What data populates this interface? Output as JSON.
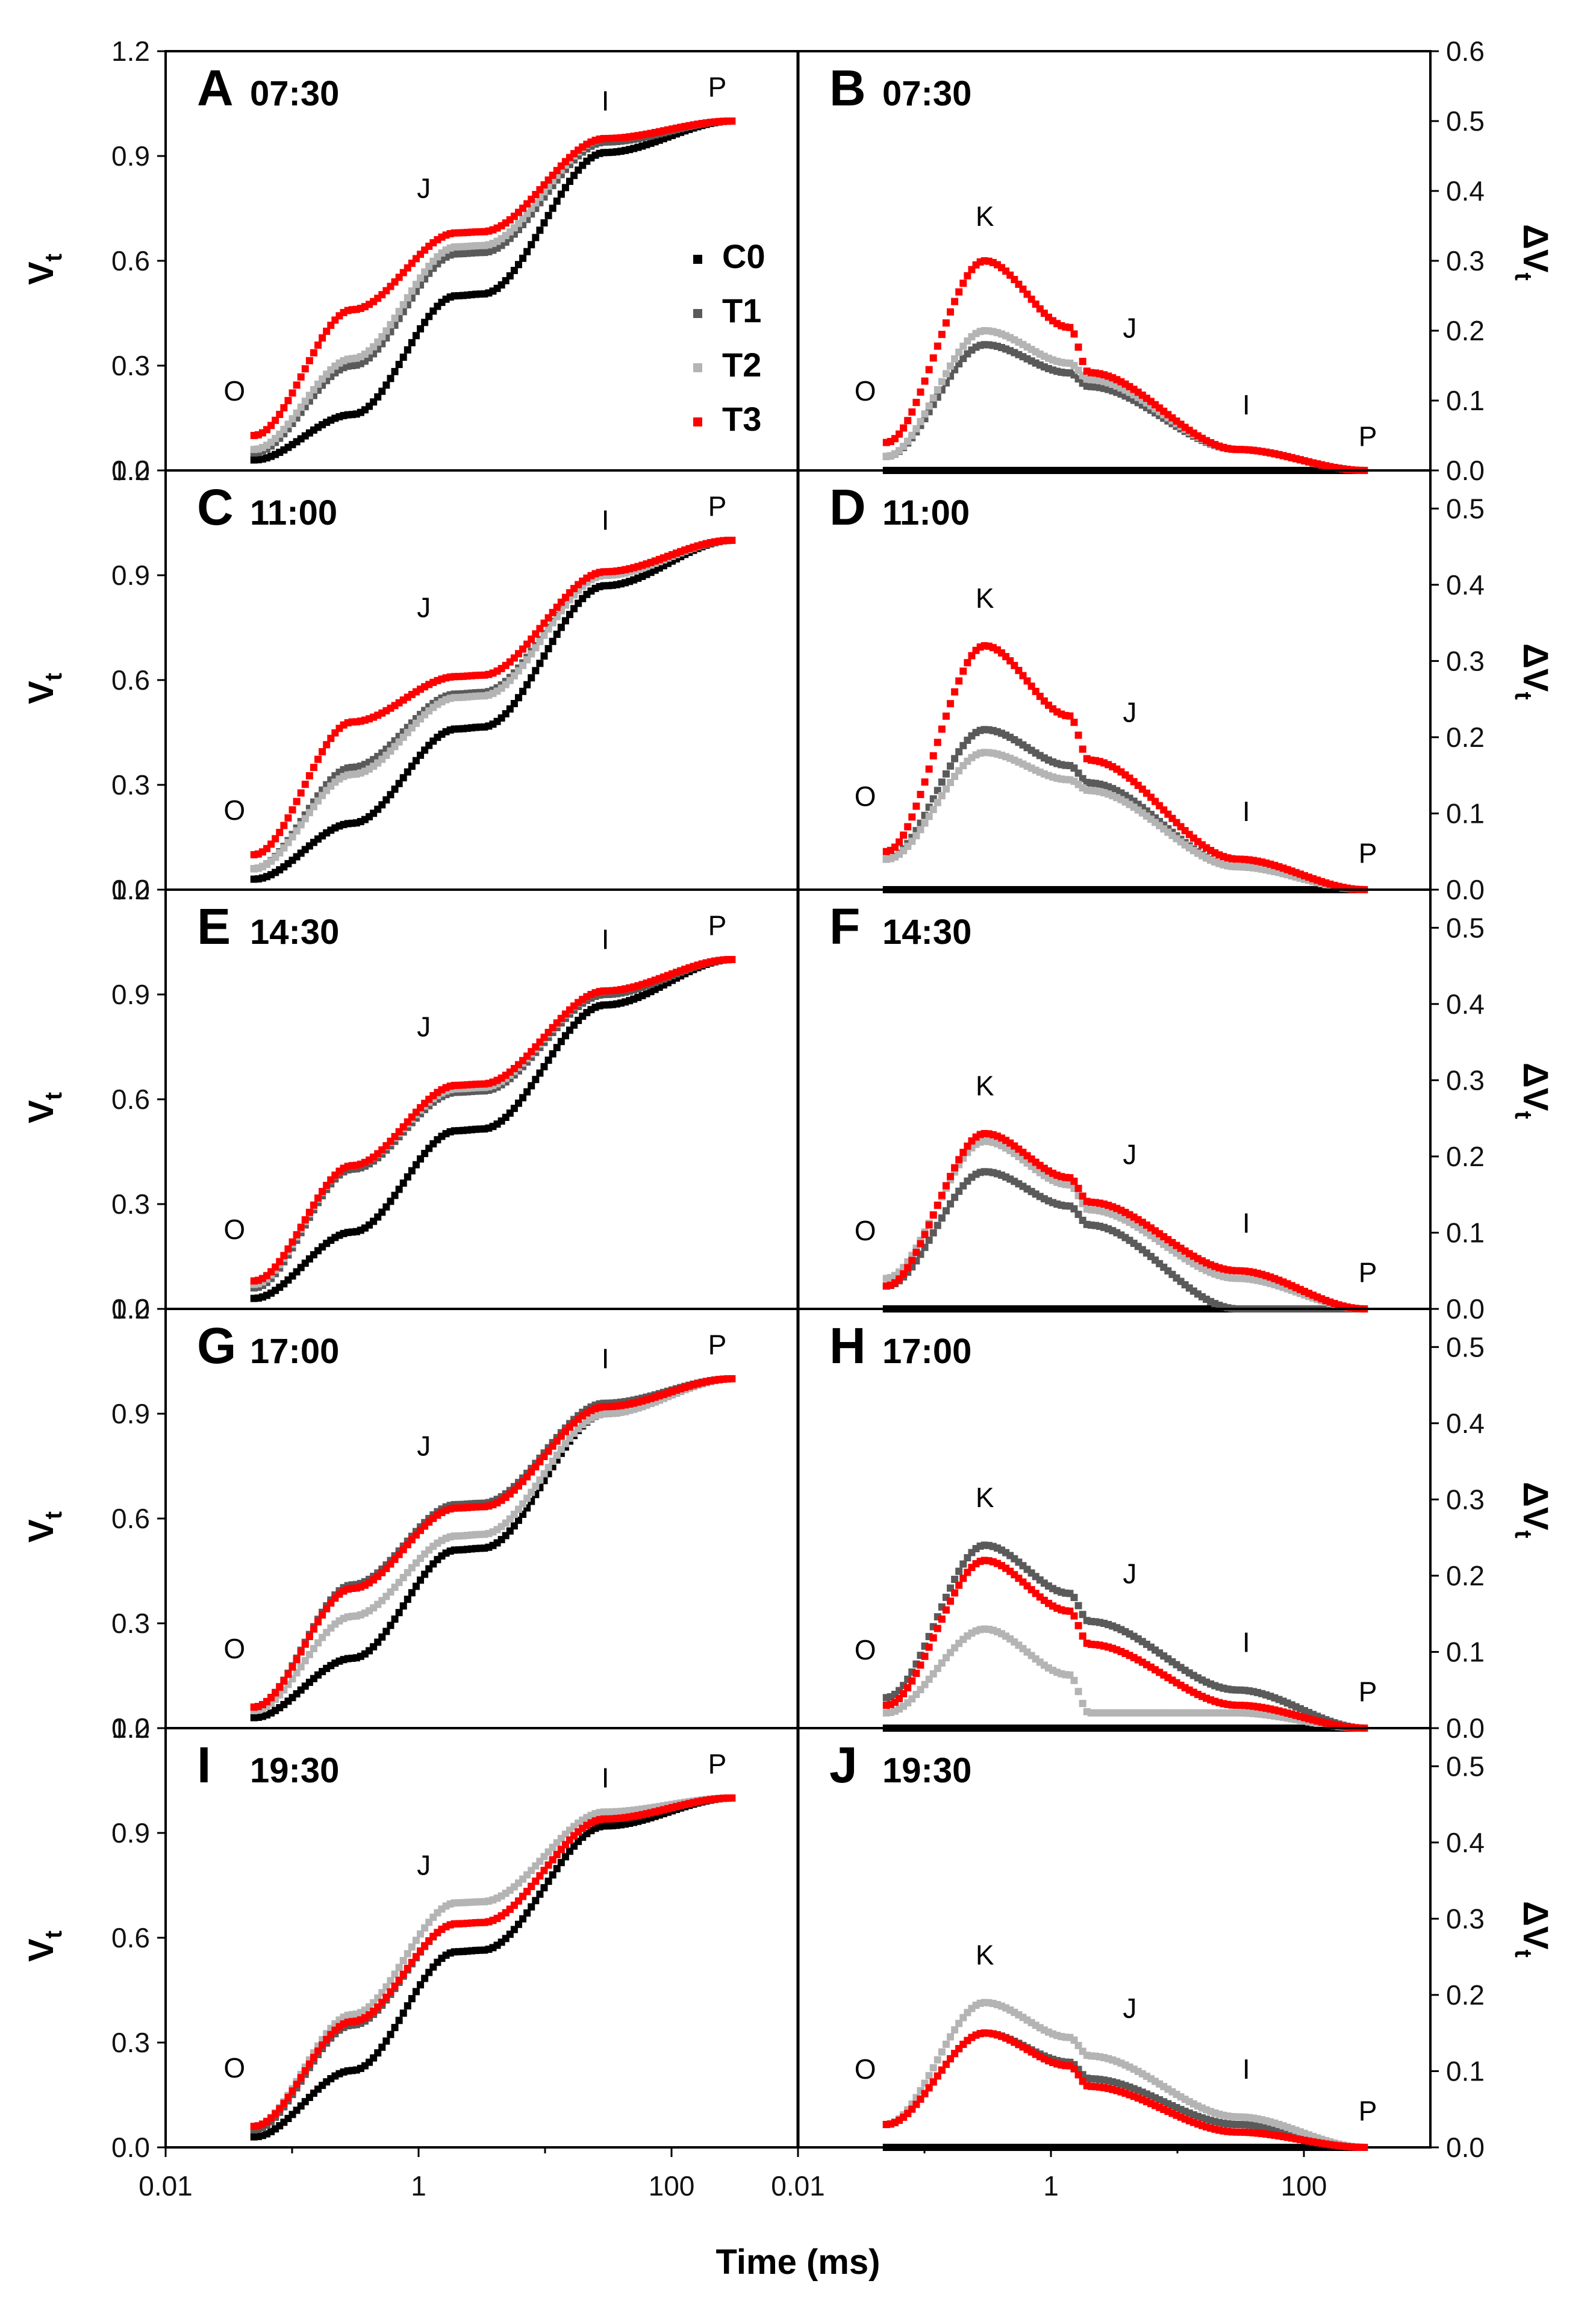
{
  "figure": {
    "xlabel": "Time (ms)",
    "x_ticks": [
      "0.01",
      "1",
      "100"
    ],
    "legend": [
      {
        "label": "C0",
        "color": "#000000"
      },
      {
        "label": "T1",
        "color": "#5a5a5a"
      },
      {
        "label": "T2",
        "color": "#b4b4b4"
      },
      {
        "label": "T3",
        "color": "#ff0000"
      }
    ]
  },
  "chart_data": [
    {
      "type": "scatter",
      "panel": "A",
      "title": "07:30",
      "ylabel": "Vt",
      "xscale": "log",
      "xlim": [
        0.01,
        1000
      ],
      "ylim": [
        0,
        1.2
      ],
      "yticks": [
        "0.0",
        "0.3",
        "0.6",
        "0.9",
        "1.2"
      ],
      "annotations": [
        "O",
        "J",
        "I",
        "P"
      ],
      "series": [
        {
          "name": "C0",
          "y_at": {
            "O": 0.03,
            "K": 0.16,
            "J": 0.5,
            "I": 0.91,
            "P": 1.0
          }
        },
        {
          "name": "T1",
          "y_at": {
            "O": 0.05,
            "K": 0.3,
            "J": 0.62,
            "I": 0.94,
            "P": 1.0
          }
        },
        {
          "name": "T2",
          "y_at": {
            "O": 0.06,
            "K": 0.32,
            "J": 0.64,
            "I": 0.95,
            "P": 1.0
          }
        },
        {
          "name": "T3",
          "y_at": {
            "O": 0.1,
            "K": 0.46,
            "J": 0.68,
            "I": 0.95,
            "P": 1.0
          }
        }
      ]
    },
    {
      "type": "scatter",
      "panel": "B",
      "title": "07:30",
      "ylabel": "ΔVt",
      "xscale": "log",
      "xlim": [
        0.01,
        1000
      ],
      "ylim": [
        0,
        0.6
      ],
      "yticks": [
        "0.0",
        "0.1",
        "0.2",
        "0.3",
        "0.4",
        "0.5",
        "0.6"
      ],
      "annotations": [
        "O",
        "K",
        "J",
        "I",
        "P"
      ],
      "series": [
        {
          "name": "C0",
          "y_at": {
            "O": 0.0,
            "K": 0.0,
            "J": 0.0,
            "I": 0.0,
            "P": 0.0
          }
        },
        {
          "name": "T1",
          "y_at": {
            "O": 0.02,
            "K": 0.18,
            "J": 0.12,
            "I": 0.03,
            "P": 0.0
          }
        },
        {
          "name": "T2",
          "y_at": {
            "O": 0.02,
            "K": 0.2,
            "J": 0.13,
            "I": 0.03,
            "P": 0.0
          }
        },
        {
          "name": "T3",
          "y_at": {
            "O": 0.04,
            "K": 0.3,
            "J": 0.14,
            "I": 0.03,
            "P": 0.0
          }
        }
      ]
    },
    {
      "type": "scatter",
      "panel": "C",
      "title": "11:00",
      "ylabel": "Vt",
      "xscale": "log",
      "xlim": [
        0.01,
        1000
      ],
      "ylim": [
        0,
        1.2
      ],
      "yticks": [
        "0.0",
        "0.3",
        "0.6",
        "0.9",
        "1.2"
      ],
      "annotations": [
        "O",
        "J",
        "I",
        "P"
      ],
      "series": [
        {
          "name": "C0",
          "y_at": {
            "O": 0.03,
            "K": 0.19,
            "J": 0.46,
            "I": 0.87,
            "P": 1.0
          }
        },
        {
          "name": "T1",
          "y_at": {
            "O": 0.06,
            "K": 0.35,
            "J": 0.56,
            "I": 0.9,
            "P": 1.0
          }
        },
        {
          "name": "T2",
          "y_at": {
            "O": 0.06,
            "K": 0.33,
            "J": 0.55,
            "I": 0.9,
            "P": 1.0
          }
        },
        {
          "name": "T3",
          "y_at": {
            "O": 0.1,
            "K": 0.48,
            "J": 0.61,
            "I": 0.91,
            "P": 1.0
          }
        }
      ]
    },
    {
      "type": "scatter",
      "panel": "D",
      "title": "11:00",
      "ylabel": "ΔVt",
      "xscale": "log",
      "xlim": [
        0.01,
        1000
      ],
      "ylim": [
        0,
        0.55
      ],
      "yticks": [
        "0.0",
        "0.1",
        "0.2",
        "0.3",
        "0.4",
        "0.5"
      ],
      "annotations": [
        "O",
        "K",
        "J",
        "I",
        "P"
      ],
      "series": [
        {
          "name": "C0",
          "y_at": {
            "O": 0.0,
            "K": 0.0,
            "J": 0.0,
            "I": 0.0,
            "P": 0.0
          }
        },
        {
          "name": "T1",
          "y_at": {
            "O": 0.04,
            "K": 0.21,
            "J": 0.14,
            "I": 0.03,
            "P": 0.0
          }
        },
        {
          "name": "T2",
          "y_at": {
            "O": 0.04,
            "K": 0.18,
            "J": 0.13,
            "I": 0.03,
            "P": 0.0
          }
        },
        {
          "name": "T3",
          "y_at": {
            "O": 0.05,
            "K": 0.32,
            "J": 0.17,
            "I": 0.04,
            "P": 0.0
          }
        }
      ]
    },
    {
      "type": "scatter",
      "panel": "E",
      "title": "14:30",
      "ylabel": "Vt",
      "xscale": "log",
      "xlim": [
        0.01,
        1000
      ],
      "ylim": [
        0,
        1.2
      ],
      "yticks": [
        "0.0",
        "0.3",
        "0.6",
        "0.9",
        "1.2"
      ],
      "annotations": [
        "O",
        "J",
        "I",
        "P"
      ],
      "series": [
        {
          "name": "C0",
          "y_at": {
            "O": 0.03,
            "K": 0.22,
            "J": 0.51,
            "I": 0.87,
            "P": 1.0
          }
        },
        {
          "name": "T1",
          "y_at": {
            "O": 0.06,
            "K": 0.4,
            "J": 0.62,
            "I": 0.9,
            "P": 1.0
          }
        },
        {
          "name": "T2",
          "y_at": {
            "O": 0.07,
            "K": 0.41,
            "J": 0.63,
            "I": 0.91,
            "P": 1.0
          }
        },
        {
          "name": "T3",
          "y_at": {
            "O": 0.08,
            "K": 0.41,
            "J": 0.64,
            "I": 0.91,
            "P": 1.0
          }
        }
      ]
    },
    {
      "type": "scatter",
      "panel": "F",
      "title": "14:30",
      "ylabel": "ΔVt",
      "xscale": "log",
      "xlim": [
        0.01,
        1000
      ],
      "ylim": [
        0,
        0.55
      ],
      "yticks": [
        "0.0",
        "0.1",
        "0.2",
        "0.3",
        "0.4",
        "0.5"
      ],
      "annotations": [
        "O",
        "K",
        "J",
        "I",
        "P"
      ],
      "series": [
        {
          "name": "C0",
          "y_at": {
            "O": 0.0,
            "K": 0.0,
            "J": 0.0,
            "I": 0.0,
            "P": 0.0
          }
        },
        {
          "name": "T1",
          "y_at": {
            "O": 0.03,
            "K": 0.18,
            "J": 0.11,
            "I": 0.0,
            "P": 0.0
          }
        },
        {
          "name": "T2",
          "y_at": {
            "O": 0.04,
            "K": 0.22,
            "J": 0.13,
            "I": 0.04,
            "P": 0.0
          }
        },
        {
          "name": "T3",
          "y_at": {
            "O": 0.03,
            "K": 0.23,
            "J": 0.14,
            "I": 0.05,
            "P": 0.0
          }
        }
      ]
    },
    {
      "type": "scatter",
      "panel": "G",
      "title": "17:00",
      "ylabel": "Vt",
      "xscale": "log",
      "xlim": [
        0.01,
        1000
      ],
      "ylim": [
        0,
        1.2
      ],
      "yticks": [
        "0.0",
        "0.3",
        "0.6",
        "0.9",
        "1.2"
      ],
      "annotations": [
        "O",
        "J",
        "I",
        "P"
      ],
      "series": [
        {
          "name": "C0",
          "y_at": {
            "O": 0.03,
            "K": 0.2,
            "J": 0.51,
            "I": 0.9,
            "P": 1.0
          }
        },
        {
          "name": "T1",
          "y_at": {
            "O": 0.06,
            "K": 0.41,
            "J": 0.64,
            "I": 0.93,
            "P": 1.0
          }
        },
        {
          "name": "T2",
          "y_at": {
            "O": 0.05,
            "K": 0.32,
            "J": 0.55,
            "I": 0.9,
            "P": 1.0
          }
        },
        {
          "name": "T3",
          "y_at": {
            "O": 0.06,
            "K": 0.4,
            "J": 0.63,
            "I": 0.92,
            "P": 1.0
          }
        }
      ]
    },
    {
      "type": "scatter",
      "panel": "H",
      "title": "17:00",
      "ylabel": "ΔVt",
      "xscale": "log",
      "xlim": [
        0.01,
        1000
      ],
      "ylim": [
        0,
        0.55
      ],
      "yticks": [
        "0.0",
        "0.1",
        "0.2",
        "0.3",
        "0.4",
        "0.5"
      ],
      "annotations": [
        "O",
        "K",
        "J",
        "I",
        "P"
      ],
      "series": [
        {
          "name": "C0",
          "y_at": {
            "O": 0.0,
            "K": 0.0,
            "J": 0.0,
            "I": 0.0,
            "P": 0.0
          }
        },
        {
          "name": "T1",
          "y_at": {
            "O": 0.04,
            "K": 0.24,
            "J": 0.14,
            "I": 0.05,
            "P": 0.0
          }
        },
        {
          "name": "T2",
          "y_at": {
            "O": 0.02,
            "K": 0.13,
            "J": 0.02,
            "I": 0.02,
            "P": 0.0
          }
        },
        {
          "name": "T3",
          "y_at": {
            "O": 0.03,
            "K": 0.22,
            "J": 0.11,
            "I": 0.03,
            "P": 0.0
          }
        }
      ]
    },
    {
      "type": "scatter",
      "panel": "I",
      "title": "19:30",
      "ylabel": "Vt",
      "xscale": "log",
      "xlim": [
        0.01,
        1000
      ],
      "ylim": [
        0,
        1.2
      ],
      "yticks": [
        "0.0",
        "0.3",
        "0.6",
        "0.9",
        "1.2"
      ],
      "annotations": [
        "O",
        "J",
        "I",
        "P"
      ],
      "series": [
        {
          "name": "C0",
          "y_at": {
            "O": 0.03,
            "K": 0.22,
            "J": 0.56,
            "I": 0.92,
            "P": 1.0
          }
        },
        {
          "name": "T1",
          "y_at": {
            "O": 0.05,
            "K": 0.35,
            "J": 0.64,
            "I": 0.94,
            "P": 1.0
          }
        },
        {
          "name": "T2",
          "y_at": {
            "O": 0.06,
            "K": 0.38,
            "J": 0.7,
            "I": 0.96,
            "P": 1.0
          }
        },
        {
          "name": "T3",
          "y_at": {
            "O": 0.06,
            "K": 0.36,
            "J": 0.64,
            "I": 0.94,
            "P": 1.0
          }
        }
      ]
    },
    {
      "type": "scatter",
      "panel": "J",
      "title": "19:30",
      "ylabel": "ΔVt",
      "xscale": "log",
      "xlim": [
        0.01,
        1000
      ],
      "ylim": [
        0,
        0.55
      ],
      "yticks": [
        "0.0",
        "0.1",
        "0.2",
        "0.3",
        "0.4",
        "0.5"
      ],
      "annotations": [
        "O",
        "K",
        "J",
        "I",
        "P"
      ],
      "series": [
        {
          "name": "C0",
          "y_at": {
            "O": 0.0,
            "K": 0.0,
            "J": 0.0,
            "I": 0.0,
            "P": 0.0
          }
        },
        {
          "name": "T1",
          "y_at": {
            "O": 0.03,
            "K": 0.15,
            "J": 0.09,
            "I": 0.03,
            "P": 0.0
          }
        },
        {
          "name": "T2",
          "y_at": {
            "O": 0.03,
            "K": 0.19,
            "J": 0.12,
            "I": 0.04,
            "P": 0.0
          }
        },
        {
          "name": "T3",
          "y_at": {
            "O": 0.03,
            "K": 0.15,
            "J": 0.08,
            "I": 0.02,
            "P": 0.0
          }
        }
      ]
    }
  ]
}
